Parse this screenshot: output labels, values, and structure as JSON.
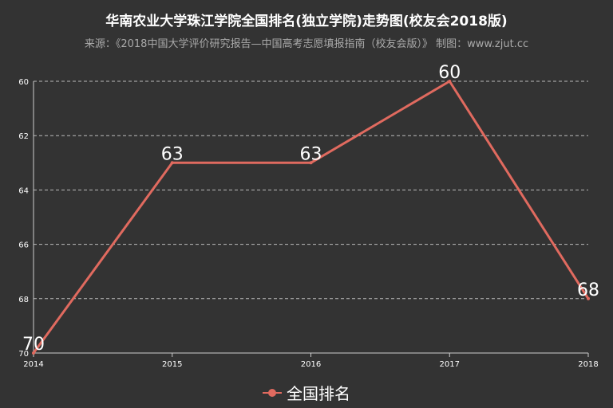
{
  "chart_data": {
    "type": "line",
    "title": "华南农业大学珠江学院全国排名(独立学院)走势图(校友会2018版)",
    "subtitle": "来源：《2018中国大学评价研究报告—中国高考志愿填报指南（校友会版）》 制图：www.zjut.cc",
    "x": [
      "2014",
      "2015",
      "2016",
      "2017",
      "2018"
    ],
    "series": [
      {
        "name": "全国排名",
        "values": [
          70,
          63,
          63,
          60,
          68
        ],
        "color": "#e06a5f"
      }
    ],
    "ylim": [
      60,
      70
    ],
    "y_inverted": true,
    "y_ticks": [
      60,
      62,
      64,
      66,
      68,
      70
    ],
    "grid": "dashed-horizontal",
    "legend": "bottom-center"
  }
}
